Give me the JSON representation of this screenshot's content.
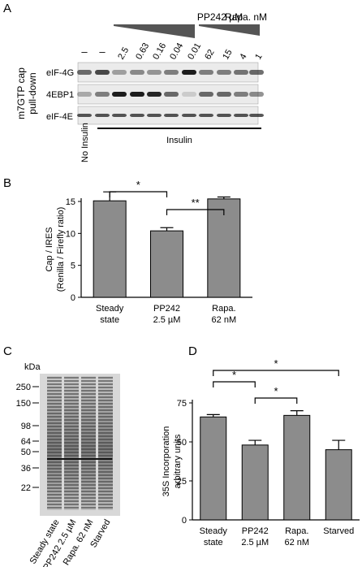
{
  "panels": {
    "a": {
      "letter": "A",
      "drug1_label": "PP242 µM",
      "drug2_label": "Rapa. nM",
      "dashes": [
        "–",
        "–"
      ],
      "conc_labels": [
        "2.5",
        "0.63",
        "0.16",
        "0.04",
        "0.01",
        "62",
        "15",
        "4",
        "1"
      ],
      "blot_labels": [
        "eIF-4G",
        "4EBP1",
        "eIF-4E"
      ],
      "ylabel_line1": "m7GTP cap",
      "ylabel_line2": "pull-down",
      "no_insulin": "No Insulin",
      "insulin": "Insulin"
    },
    "c": {
      "letter": "C",
      "kda_label": "kDa",
      "markers": [
        "250",
        "150",
        "98",
        "64",
        "50",
        "36",
        "22"
      ],
      "lanes": [
        "Steady state",
        "PP242 2.5 µM",
        "Rapa. 62 nM",
        "Starved"
      ]
    }
  },
  "chart_data": [
    {
      "panel": "B",
      "type": "bar",
      "categories": [
        [
          "Steady",
          "state"
        ],
        [
          "PP242",
          "2.5 µM"
        ],
        [
          "Rapa.",
          "62 nM"
        ]
      ],
      "values": [
        15.1,
        10.4,
        15.4
      ],
      "errors": [
        1.4,
        0.5,
        0.3
      ],
      "ylabel": [
        "Cap / IRES",
        "(Renilla / Firefly ratio)"
      ],
      "ylim": [
        0,
        15
      ],
      "yticks": [
        "0",
        "5",
        "10",
        "15"
      ],
      "bar_color": "#8c8c8c",
      "significance": [
        {
          "from": 0,
          "to": 1,
          "label": "*"
        },
        {
          "from": 1,
          "to": 2,
          "label": "**"
        }
      ]
    },
    {
      "panel": "D",
      "type": "bar",
      "categories": [
        [
          "Steady",
          "state"
        ],
        [
          "PP242",
          "2.5 µM"
        ],
        [
          "Rapa.",
          "62 nM"
        ],
        [
          "Starved",
          ""
        ]
      ],
      "values": [
        66,
        48,
        67,
        45
      ],
      "errors": [
        1.5,
        3,
        3,
        6
      ],
      "ylabel": [
        "35S Incorporation",
        "arbitrary units"
      ],
      "ylim": [
        0,
        75
      ],
      "yticks": [
        "0",
        "25",
        "50",
        "75"
      ],
      "bar_color": "#8c8c8c",
      "significance": [
        {
          "from": 0,
          "to": 1,
          "label": "*"
        },
        {
          "from": 1,
          "to": 2,
          "label": "*"
        },
        {
          "from": 0,
          "to": 3,
          "label": "*"
        }
      ]
    }
  ]
}
